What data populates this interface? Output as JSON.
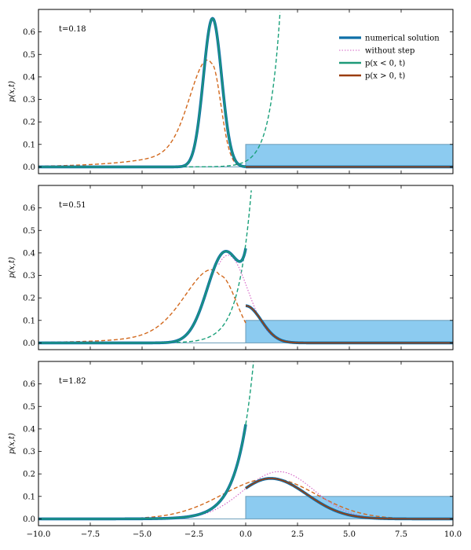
{
  "chart_data": {
    "type": "line",
    "xlim": [
      -10,
      10
    ],
    "ylim": [
      -0.03,
      0.7
    ],
    "x_ticks": [
      -10,
      -7.5,
      -5,
      -2.5,
      0,
      2.5,
      5,
      7.5,
      10
    ],
    "x_tick_labels": [
      "−10.0",
      "−7.5",
      "−5.0",
      "−2.5",
      "0.0",
      "2.5",
      "5.0",
      "7.5",
      "10.0"
    ],
    "y_ticks": [
      0,
      0.1,
      0.2,
      0.3,
      0.4,
      0.5,
      0.6
    ],
    "y_tick_labels": [
      "0.0",
      "0.1",
      "0.2",
      "0.3",
      "0.4",
      "0.5",
      "0.6"
    ],
    "ylabel": "p(x,t)",
    "step_height": 0.1,
    "step_start": 0,
    "legend": [
      {
        "key": "numerical",
        "label": "numerical solution"
      },
      {
        "key": "without_step",
        "label": "without step"
      },
      {
        "key": "left",
        "label": "p(x < 0, t)"
      },
      {
        "key": "right",
        "label": "p(x > 0, t)"
      }
    ],
    "colors": {
      "numerical": "#0e6fa8",
      "without_step": "#d45fc4",
      "left": "#1e9a78",
      "right": "#9a3d0e",
      "dashed_left": "#d2691e",
      "dashed_right": "#1aa07a",
      "step_fill": "#8ccbf0",
      "step_edge": "#6a9bb8"
    },
    "panels": [
      {
        "label": "t=0.18",
        "series": {
          "left_peak_x": -1.6,
          "left_peak_y": 0.66,
          "left_width": 0.44,
          "dashed_peak_x": -1.65,
          "dashed_peak_y": 0.46,
          "dashed_width_left": 0.95,
          "dashed_width_right": 0.45,
          "dashed_tail": 0.15,
          "right_y0": 0.0,
          "right_peak_x": 0,
          "right_width": 1.0,
          "without_step": null
        }
      },
      {
        "label": "t=0.51",
        "series": {
          "left_peak_x": -1.0,
          "left_peak_y": 0.4,
          "left_width": 0.85,
          "left_at_zero": 0.435,
          "dashed_peak_x": -1.25,
          "dashed_peak_y": 0.3,
          "dashed_width_left": 1.5,
          "dashed_width_right": 0.8,
          "dashed_tail": 0.13,
          "right_y0": 0.165,
          "right_width": 0.75,
          "without_step": {
            "peak_x": -0.85,
            "peak_y": 0.39,
            "width": 0.95
          }
        }
      },
      {
        "label": "t=1.82",
        "series": {
          "left_at_zero": 0.42,
          "dashed_peak_x": 1.2,
          "dashed_peak_y": 0.18,
          "right_y0": 0.155,
          "right_peak_x": 1.2,
          "right_peak_y": 0.18,
          "without_step": {
            "peak_x": 1.6,
            "peak_y": 0.21,
            "width": 1.7
          }
        }
      }
    ]
  }
}
